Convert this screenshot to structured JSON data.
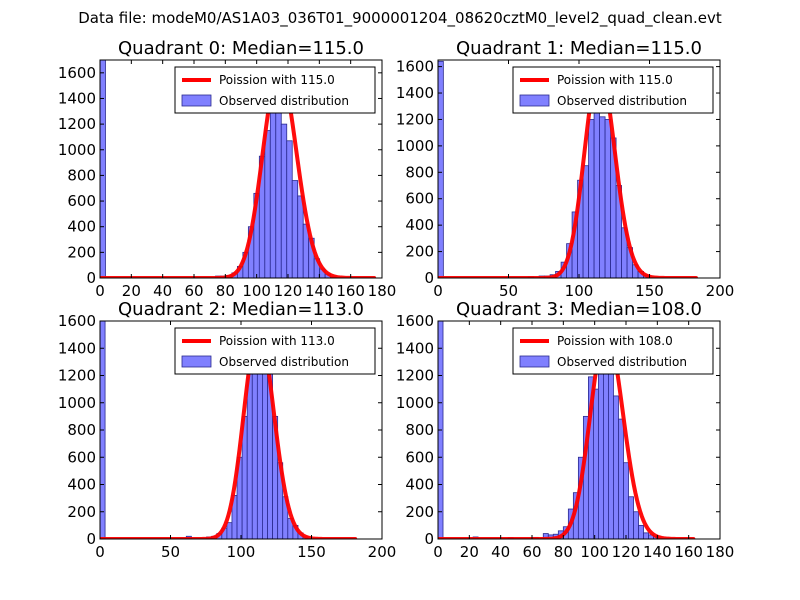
{
  "figure": {
    "suptitle": "Data file: modeM0/AS1A03_036T01_9000001204_08620cztM0_level2_quad_clean.evt"
  },
  "colors": {
    "bar_fill": "#8080ff",
    "bar_edge": "#2a2a90",
    "line": "#ff0000",
    "axes": "#000000",
    "legend_edge": "#000000"
  },
  "chart_data": [
    {
      "type": "bar",
      "title": "Quadrant 0: Median=115.0",
      "xlim": [
        0,
        180
      ],
      "ylim": [
        0,
        1700
      ],
      "xticks": [
        "0",
        "20",
        "40",
        "60",
        "80",
        "100",
        "120",
        "140",
        "160",
        "180"
      ],
      "yticks": [
        "0",
        "200",
        "400",
        "600",
        "800",
        "1000",
        "1200",
        "1400",
        "1600"
      ],
      "legend": {
        "loc": "upper-right",
        "line_label": "Poission with 115.0",
        "bar_label": "Observed distribution"
      },
      "bars": [
        {
          "x0": 0,
          "x1": 3.5,
          "value": 1700
        },
        {
          "x0": 73.7,
          "x1": 77.2,
          "value": 15
        },
        {
          "x0": 77.2,
          "x1": 80.7,
          "value": 15
        },
        {
          "x0": 80.7,
          "x1": 84.2,
          "value": 20
        },
        {
          "x0": 84.2,
          "x1": 87.7,
          "value": 40
        },
        {
          "x0": 87.7,
          "x1": 91.2,
          "value": 90
        },
        {
          "x0": 91.2,
          "x1": 94.7,
          "value": 200
        },
        {
          "x0": 94.7,
          "x1": 98.2,
          "value": 400
        },
        {
          "x0": 98.2,
          "x1": 101.7,
          "value": 660
        },
        {
          "x0": 101.7,
          "x1": 105.2,
          "value": 950
        },
        {
          "x0": 105.2,
          "x1": 108.7,
          "value": 1150
        },
        {
          "x0": 108.7,
          "x1": 112.2,
          "value": 1600
        },
        {
          "x0": 112.2,
          "x1": 115.7,
          "value": 1350
        },
        {
          "x0": 115.7,
          "x1": 119.2,
          "value": 1200
        },
        {
          "x0": 119.2,
          "x1": 122.7,
          "value": 1070
        },
        {
          "x0": 122.7,
          "x1": 126.2,
          "value": 760
        },
        {
          "x0": 126.2,
          "x1": 129.7,
          "value": 640
        },
        {
          "x0": 129.7,
          "x1": 133.2,
          "value": 420
        },
        {
          "x0": 133.2,
          "x1": 136.7,
          "value": 310
        },
        {
          "x0": 136.7,
          "x1": 140.2,
          "value": 150
        },
        {
          "x0": 140.2,
          "x1": 143.7,
          "value": 70
        },
        {
          "x0": 143.7,
          "x1": 147.2,
          "value": 30
        },
        {
          "x0": 147.2,
          "x1": 150.7,
          "value": 10
        }
      ],
      "poisson": {
        "mean": 115.0,
        "peak": 1620,
        "x_range": [
          0,
          175
        ]
      }
    },
    {
      "type": "bar",
      "title": "Quadrant 1: Median=115.0",
      "xlim": [
        0,
        200
      ],
      "ylim": [
        0,
        1650
      ],
      "xticks": [
        "0",
        "50",
        "100",
        "150",
        "200"
      ],
      "yticks": [
        "0",
        "200",
        "400",
        "600",
        "800",
        "1000",
        "1200",
        "1400",
        "1600"
      ],
      "legend": {
        "loc": "upper-right",
        "line_label": "Poission with 115.0",
        "bar_label": "Observed distribution"
      },
      "bars": [
        {
          "x0": 0,
          "x1": 3.8,
          "value": 1640
        },
        {
          "x0": 63.9,
          "x1": 67.8,
          "value": 8
        },
        {
          "x0": 71.7,
          "x1": 75.6,
          "value": 15
        },
        {
          "x0": 75.6,
          "x1": 79.5,
          "value": 15
        },
        {
          "x0": 79.5,
          "x1": 83.4,
          "value": 25
        },
        {
          "x0": 83.4,
          "x1": 87.3,
          "value": 50
        },
        {
          "x0": 87.3,
          "x1": 91.2,
          "value": 120
        },
        {
          "x0": 91.2,
          "x1": 95.1,
          "value": 260
        },
        {
          "x0": 95.1,
          "x1": 99.0,
          "value": 500
        },
        {
          "x0": 99.0,
          "x1": 102.9,
          "value": 740
        },
        {
          "x0": 102.9,
          "x1": 106.8,
          "value": 850
        },
        {
          "x0": 106.8,
          "x1": 110.7,
          "value": 1200
        },
        {
          "x0": 110.7,
          "x1": 114.6,
          "value": 1350
        },
        {
          "x0": 114.6,
          "x1": 118.5,
          "value": 1220
        },
        {
          "x0": 118.5,
          "x1": 122.4,
          "value": 1200
        },
        {
          "x0": 122.4,
          "x1": 126.3,
          "value": 1060
        },
        {
          "x0": 126.3,
          "x1": 130.2,
          "value": 700
        },
        {
          "x0": 130.2,
          "x1": 134.1,
          "value": 380
        },
        {
          "x0": 134.1,
          "x1": 138.0,
          "value": 230
        },
        {
          "x0": 138.0,
          "x1": 141.9,
          "value": 100
        },
        {
          "x0": 141.9,
          "x1": 145.8,
          "value": 50
        },
        {
          "x0": 145.8,
          "x1": 149.7,
          "value": 20
        }
      ],
      "poisson": {
        "mean": 115.0,
        "peak": 1580,
        "x_range": [
          0,
          183
        ]
      }
    },
    {
      "type": "bar",
      "title": "Quadrant 2: Median=113.0",
      "xlim": [
        0,
        200
      ],
      "ylim": [
        0,
        1600
      ],
      "xticks": [
        "0",
        "50",
        "100",
        "150",
        "200"
      ],
      "yticks": [
        "0",
        "200",
        "400",
        "600",
        "800",
        "1000",
        "1200",
        "1400",
        "1600"
      ],
      "legend": {
        "loc": "upper-right",
        "line_label": "Poission with 113.0",
        "bar_label": "Observed distribution"
      },
      "bars": [
        {
          "x0": 0,
          "x1": 3.6,
          "value": 1600
        },
        {
          "x0": 61.2,
          "x1": 64.8,
          "value": 20
        },
        {
          "x0": 75.6,
          "x1": 79.2,
          "value": 15
        },
        {
          "x0": 79.2,
          "x1": 82.8,
          "value": 20
        },
        {
          "x0": 82.8,
          "x1": 86.4,
          "value": 40
        },
        {
          "x0": 86.4,
          "x1": 90.0,
          "value": 80
        },
        {
          "x0": 90.0,
          "x1": 93.6,
          "value": 120
        },
        {
          "x0": 93.6,
          "x1": 97.2,
          "value": 320
        },
        {
          "x0": 97.2,
          "x1": 100.8,
          "value": 600
        },
        {
          "x0": 100.8,
          "x1": 104.4,
          "value": 900
        },
        {
          "x0": 104.4,
          "x1": 108.0,
          "value": 1230
        },
        {
          "x0": 108.0,
          "x1": 111.6,
          "value": 1500
        },
        {
          "x0": 111.6,
          "x1": 115.2,
          "value": 1230
        },
        {
          "x0": 115.2,
          "x1": 118.8,
          "value": 1470
        },
        {
          "x0": 118.8,
          "x1": 122.4,
          "value": 1230
        },
        {
          "x0": 122.4,
          "x1": 126.0,
          "value": 900
        },
        {
          "x0": 126.0,
          "x1": 129.6,
          "value": 560
        },
        {
          "x0": 129.6,
          "x1": 133.2,
          "value": 310
        },
        {
          "x0": 133.2,
          "x1": 136.8,
          "value": 150
        },
        {
          "x0": 136.8,
          "x1": 140.4,
          "value": 100
        },
        {
          "x0": 140.4,
          "x1": 144.0,
          "value": 45
        },
        {
          "x0": 144.0,
          "x1": 147.6,
          "value": 15
        }
      ],
      "poisson": {
        "mean": 113.0,
        "peak": 1530,
        "x_range": [
          0,
          181
        ]
      }
    },
    {
      "type": "bar",
      "title": "Quadrant 3: Median=108.0",
      "xlim": [
        0,
        180
      ],
      "ylim": [
        0,
        1600
      ],
      "xticks": [
        "0",
        "20",
        "40",
        "60",
        "80",
        "100",
        "120",
        "140",
        "160",
        "180"
      ],
      "yticks": [
        "0",
        "200",
        "400",
        "600",
        "800",
        "1000",
        "1200",
        "1400",
        "1600"
      ],
      "legend": {
        "loc": "upper-right",
        "line_label": "Poission with 108.0",
        "bar_label": "Observed distribution"
      },
      "bars": [
        {
          "x0": 0,
          "x1": 3.2,
          "value": 1600
        },
        {
          "x0": 22.4,
          "x1": 25.6,
          "value": 15
        },
        {
          "x0": 44.8,
          "x1": 48.0,
          "value": 10
        },
        {
          "x0": 60.8,
          "x1": 64.0,
          "value": 12
        },
        {
          "x0": 67.2,
          "x1": 70.4,
          "value": 40
        },
        {
          "x0": 70.4,
          "x1": 73.6,
          "value": 30
        },
        {
          "x0": 73.6,
          "x1": 76.8,
          "value": 35
        },
        {
          "x0": 76.8,
          "x1": 80.0,
          "value": 60
        },
        {
          "x0": 80.0,
          "x1": 83.2,
          "value": 90
        },
        {
          "x0": 83.2,
          "x1": 86.4,
          "value": 220
        },
        {
          "x0": 86.4,
          "x1": 89.6,
          "value": 340
        },
        {
          "x0": 89.6,
          "x1": 92.8,
          "value": 600
        },
        {
          "x0": 92.8,
          "x1": 96.0,
          "value": 900
        },
        {
          "x0": 96.0,
          "x1": 99.2,
          "value": 1190
        },
        {
          "x0": 99.2,
          "x1": 102.4,
          "value": 1100
        },
        {
          "x0": 102.4,
          "x1": 105.6,
          "value": 1230
        },
        {
          "x0": 105.6,
          "x1": 108.8,
          "value": 1400
        },
        {
          "x0": 108.8,
          "x1": 112.0,
          "value": 1230
        },
        {
          "x0": 112.0,
          "x1": 115.2,
          "value": 1050
        },
        {
          "x0": 115.2,
          "x1": 118.4,
          "value": 880
        },
        {
          "x0": 118.4,
          "x1": 121.6,
          "value": 560
        },
        {
          "x0": 121.6,
          "x1": 124.8,
          "value": 310
        },
        {
          "x0": 124.8,
          "x1": 128.0,
          "value": 200
        },
        {
          "x0": 128.0,
          "x1": 131.2,
          "value": 100
        },
        {
          "x0": 131.2,
          "x1": 134.4,
          "value": 45
        },
        {
          "x0": 134.4,
          "x1": 137.6,
          "value": 30
        },
        {
          "x0": 137.6,
          "x1": 140.8,
          "value": 20
        }
      ],
      "poisson": {
        "mean": 108.0,
        "peak": 1520,
        "x_range": [
          0,
          163
        ]
      }
    }
  ]
}
